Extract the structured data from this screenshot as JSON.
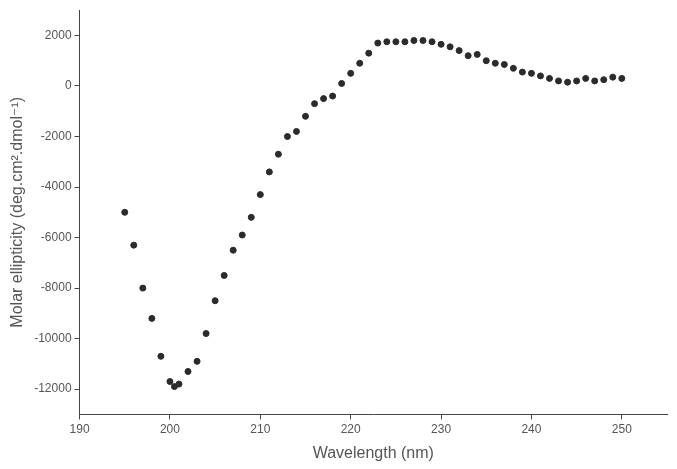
{
  "chart_data": {
    "type": "scatter",
    "x_label": "Wavelength (nm)",
    "y_label": "Molar ellipticity (deg.cm².dmol⁻¹)",
    "x": [
      195,
      196,
      197,
      198,
      199,
      200,
      200.5,
      201,
      202,
      203,
      204,
      205,
      206,
      207,
      208,
      209,
      210,
      211,
      212,
      213,
      214,
      215,
      216,
      217,
      218,
      219,
      220,
      221,
      222,
      223,
      224,
      225,
      226,
      227,
      228,
      229,
      230,
      231,
      232,
      233,
      234,
      235,
      236,
      237,
      238,
      239,
      240,
      241,
      242,
      243,
      244,
      245,
      246,
      247,
      248,
      249,
      250
    ],
    "values": [
      -5000,
      -6300,
      -8000,
      -9200,
      -10700,
      -11700,
      -11900,
      -11800,
      -11300,
      -10900,
      -9800,
      -8500,
      -7500,
      -6500,
      -5900,
      -5200,
      -4300,
      -3400,
      -2700,
      -2000,
      -1800,
      -1200,
      -700,
      -500,
      -400,
      100,
      500,
      900,
      1300,
      1700,
      1750,
      1750,
      1750,
      1800,
      1800,
      1750,
      1650,
      1550,
      1400,
      1200,
      1250,
      1000,
      900,
      850,
      700,
      550,
      500,
      400,
      300,
      200,
      150,
      200,
      300,
      200,
      250,
      350,
      300
    ],
    "color": "#2b2b2b",
    "marker": "circle",
    "xlim": [
      190,
      255
    ],
    "xticks": [
      190,
      200,
      210,
      220,
      230,
      240,
      250
    ],
    "ylim": [
      -13000,
      3000
    ],
    "yticks": [
      -12000,
      -10000,
      -8000,
      -6000,
      -4000,
      -2000,
      0,
      2000
    ],
    "grid": false
  }
}
